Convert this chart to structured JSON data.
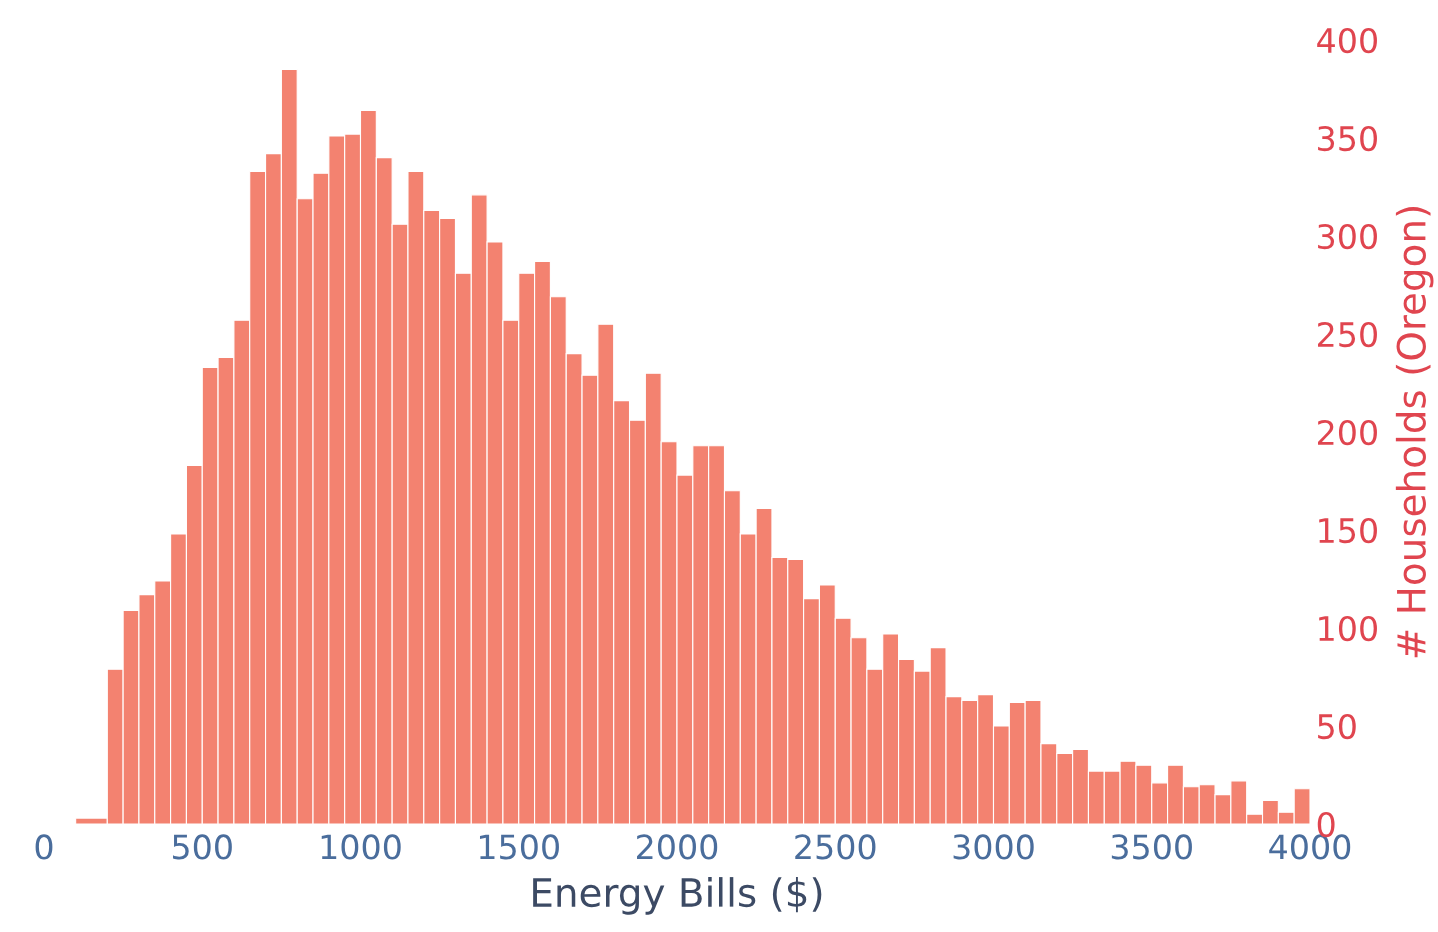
{
  "chart_data": {
    "type": "histogram",
    "xlabel": "Energy Bills ($)",
    "ylabel": "# Households (Oregon)",
    "bins": [
      100,
      200,
      250,
      300,
      350,
      400,
      450,
      500,
      550,
      600,
      650,
      700,
      750,
      800,
      850,
      900,
      950,
      1000,
      1050,
      1100,
      1150,
      1200,
      1250,
      1300,
      1350,
      1400,
      1450,
      1500,
      1550,
      1600,
      1650,
      1700,
      1750,
      1800,
      1850,
      1900,
      1950,
      2000,
      2050,
      2100,
      2150,
      2200,
      2250,
      2300,
      2350,
      2400,
      2450,
      2500,
      2550,
      2600,
      2650,
      2700,
      2750,
      2800,
      2850,
      2900,
      2950,
      3000,
      3050,
      3100,
      3150,
      3200,
      3250,
      3300,
      3350,
      3400,
      3450,
      3500,
      3550,
      3600,
      3650,
      3700,
      3750,
      3800,
      3850,
      3900,
      3950,
      4000
    ],
    "values": [
      3,
      79,
      109,
      117,
      124,
      148,
      183,
      233,
      238,
      257,
      333,
      342,
      385,
      319,
      332,
      351,
      352,
      364,
      340,
      306,
      333,
      313,
      309,
      281,
      321,
      297,
      257,
      281,
      287,
      269,
      240,
      229,
      255,
      216,
      206,
      230,
      195,
      178,
      193,
      193,
      170,
      148,
      161,
      136,
      135,
      115,
      122,
      105,
      95,
      79,
      97,
      84,
      78,
      90,
      65,
      63,
      66,
      50,
      62,
      63,
      41,
      36,
      38,
      27,
      27,
      32,
      30,
      21,
      30,
      19,
      20,
      15,
      22,
      5,
      12,
      6,
      18
    ],
    "color": "#f38270",
    "xlim": [
      0,
      4000
    ],
    "xticks": [
      0,
      500,
      1000,
      1500,
      2000,
      2500,
      3000,
      3500,
      4000
    ],
    "ylim": [
      0,
      400
    ],
    "yticks": [
      0,
      50,
      100,
      150,
      200,
      250,
      300,
      350,
      400
    ],
    "grid": false
  }
}
